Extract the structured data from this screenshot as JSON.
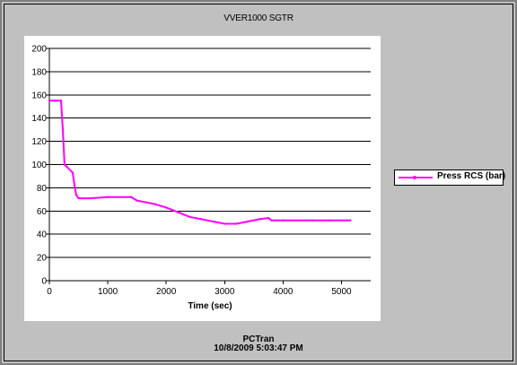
{
  "footer": {
    "app_name": "PCTran",
    "timestamp": "10/8/2009 5:03:47 PM"
  },
  "colors": {
    "series": "#ff00ff",
    "gridline": "#000000",
    "window": "#c0c0c0"
  },
  "chart_data": {
    "type": "line",
    "title": "VVER1000 SGTR",
    "xlabel": "Time (sec)",
    "ylabel": "",
    "xlim": [
      0,
      5500
    ],
    "ylim": [
      0,
      200
    ],
    "x_ticks": [
      0,
      1000,
      2000,
      3000,
      4000,
      5000
    ],
    "y_ticks": [
      0,
      20,
      40,
      60,
      80,
      100,
      120,
      140,
      160,
      180,
      200
    ],
    "grid": "horizontal",
    "legend_position": "right",
    "series": [
      {
        "name": "Press RCS (bar)",
        "x": [
          0,
          100,
          200,
          230,
          260,
          300,
          400,
          430,
          460,
          500,
          550,
          700,
          1000,
          1400,
          1500,
          1800,
          2000,
          2200,
          2400,
          2600,
          2800,
          3000,
          3200,
          3400,
          3600,
          3750,
          3800,
          4000,
          4500,
          4800,
          5150
        ],
        "values": [
          155,
          155,
          155,
          130,
          100,
          98,
          93,
          82,
          74,
          71,
          71,
          71,
          72,
          72,
          69,
          66,
          63,
          59,
          55,
          53,
          51,
          49,
          49,
          51,
          53,
          54,
          52,
          52,
          52,
          52,
          52
        ]
      }
    ]
  }
}
